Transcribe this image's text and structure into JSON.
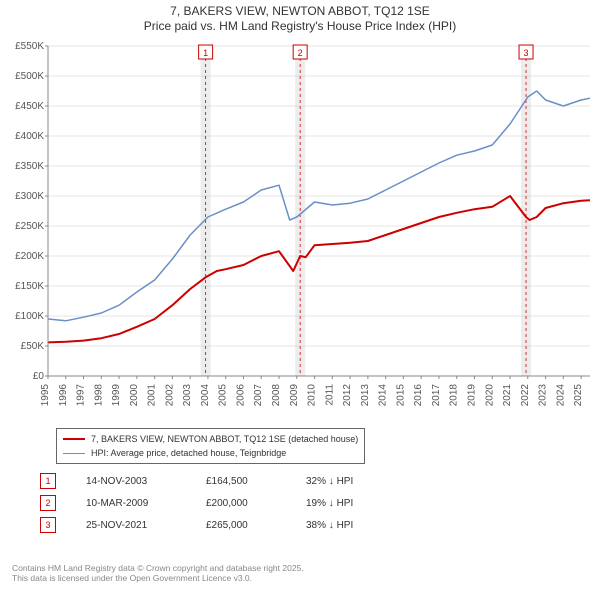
{
  "title": {
    "line1": "7, BAKERS VIEW, NEWTON ABBOT, TQ12 1SE",
    "line2": "Price paid vs. HM Land Registry's House Price Index (HPI)"
  },
  "chart": {
    "type": "line",
    "background_color": "#ffffff",
    "plot_background_color": "#ffffff",
    "grid_color": "#cccccc",
    "axis_color": "#888888",
    "tick_label_color": "#555555",
    "tick_fontsize": 10,
    "x": {
      "min": 1995,
      "max": 2025.5,
      "ticks": [
        1995,
        1996,
        1997,
        1998,
        1999,
        2000,
        2001,
        2002,
        2003,
        2004,
        2005,
        2006,
        2007,
        2008,
        2009,
        2010,
        2011,
        2012,
        2013,
        2014,
        2015,
        2016,
        2017,
        2018,
        2019,
        2020,
        2021,
        2022,
        2023,
        2024,
        2025
      ],
      "tick_labels": [
        "1995",
        "1996",
        "1997",
        "1998",
        "1999",
        "2000",
        "2001",
        "2002",
        "2003",
        "2004",
        "2005",
        "2006",
        "2007",
        "2008",
        "2009",
        "2010",
        "2011",
        "2012",
        "2013",
        "2014",
        "2015",
        "2016",
        "2017",
        "2018",
        "2019",
        "2020",
        "2021",
        "2022",
        "2023",
        "2024",
        "2025"
      ],
      "label_rotation": -90
    },
    "y": {
      "min": 0,
      "max": 550000,
      "ticks": [
        0,
        50000,
        100000,
        150000,
        200000,
        250000,
        300000,
        350000,
        400000,
        450000,
        500000,
        550000
      ],
      "tick_labels": [
        "£0",
        "£50K",
        "£100K",
        "£150K",
        "£200K",
        "£250K",
        "£300K",
        "£350K",
        "£400K",
        "£450K",
        "£500K",
        "£550K"
      ]
    },
    "series": [
      {
        "name": "property",
        "label": "7, BAKERS VIEW, NEWTON ABBOT, TQ12 1SE (detached house)",
        "color": "#cc0000",
        "line_width": 2,
        "data": [
          [
            1995,
            56000
          ],
          [
            1996,
            57000
          ],
          [
            1997,
            59000
          ],
          [
            1998,
            63000
          ],
          [
            1999,
            70000
          ],
          [
            2000,
            82000
          ],
          [
            2001,
            95000
          ],
          [
            2002,
            118000
          ],
          [
            2003,
            145000
          ],
          [
            2003.87,
            164500
          ],
          [
            2004.5,
            175000
          ],
          [
            2005,
            178000
          ],
          [
            2006,
            185000
          ],
          [
            2007,
            200000
          ],
          [
            2008,
            208000
          ],
          [
            2008.8,
            175000
          ],
          [
            2009.19,
            200000
          ],
          [
            2009.5,
            198000
          ],
          [
            2010,
            218000
          ],
          [
            2011,
            220000
          ],
          [
            2012,
            222000
          ],
          [
            2013,
            225000
          ],
          [
            2014,
            235000
          ],
          [
            2015,
            245000
          ],
          [
            2016,
            255000
          ],
          [
            2017,
            265000
          ],
          [
            2018,
            272000
          ],
          [
            2019,
            278000
          ],
          [
            2020,
            282000
          ],
          [
            2021,
            300000
          ],
          [
            2021.9,
            265000
          ],
          [
            2022.1,
            260000
          ],
          [
            2022.5,
            265000
          ],
          [
            2023,
            280000
          ],
          [
            2024,
            288000
          ],
          [
            2025,
            292000
          ],
          [
            2025.5,
            293000
          ]
        ]
      },
      {
        "name": "hpi",
        "label": "HPI: Average price, detached house, Teignbridge",
        "color": "#6a8fc7",
        "line_width": 1.5,
        "data": [
          [
            1995,
            95000
          ],
          [
            1996,
            92000
          ],
          [
            1997,
            98000
          ],
          [
            1998,
            105000
          ],
          [
            1999,
            118000
          ],
          [
            2000,
            140000
          ],
          [
            2001,
            160000
          ],
          [
            2002,
            195000
          ],
          [
            2003,
            235000
          ],
          [
            2004,
            265000
          ],
          [
            2005,
            278000
          ],
          [
            2006,
            290000
          ],
          [
            2007,
            310000
          ],
          [
            2008,
            318000
          ],
          [
            2008.6,
            260000
          ],
          [
            2009,
            265000
          ],
          [
            2010,
            290000
          ],
          [
            2011,
            285000
          ],
          [
            2012,
            288000
          ],
          [
            2013,
            295000
          ],
          [
            2014,
            310000
          ],
          [
            2015,
            325000
          ],
          [
            2016,
            340000
          ],
          [
            2017,
            355000
          ],
          [
            2018,
            368000
          ],
          [
            2019,
            375000
          ],
          [
            2020,
            385000
          ],
          [
            2021,
            420000
          ],
          [
            2022,
            465000
          ],
          [
            2022.5,
            475000
          ],
          [
            2023,
            460000
          ],
          [
            2024,
            450000
          ],
          [
            2025,
            460000
          ],
          [
            2025.5,
            463000
          ]
        ]
      }
    ],
    "markers": [
      {
        "x": 2003.87,
        "label": "1",
        "band_color": "#e8e8e8",
        "marker_line_color": "#cc0000"
      },
      {
        "x": 2009.19,
        "label": "2",
        "band_color": "#e8e8e8",
        "marker_line_color": "#cc0000"
      },
      {
        "x": 2021.9,
        "label": "3",
        "band_color": "#e8e8e8",
        "marker_line_color": "#cc0000"
      }
    ]
  },
  "legend": {
    "items": [
      {
        "color": "#cc0000",
        "width": 2,
        "label": "7, BAKERS VIEW, NEWTON ABBOT, TQ12 1SE (detached house)"
      },
      {
        "color": "#6a8fc7",
        "width": 1.5,
        "label": "HPI: Average price, detached house, Teignbridge"
      }
    ]
  },
  "transactions": [
    {
      "num": "1",
      "date": "14-NOV-2003",
      "price": "£164,500",
      "delta": "32% ↓ HPI"
    },
    {
      "num": "2",
      "date": "10-MAR-2009",
      "price": "£200,000",
      "delta": "19% ↓ HPI"
    },
    {
      "num": "3",
      "date": "25-NOV-2021",
      "price": "£265,000",
      "delta": "38% ↓ HPI"
    }
  ],
  "footer": {
    "line1": "Contains HM Land Registry data © Crown copyright and database right 2025.",
    "line2": "This data is licensed under the Open Government Licence v3.0."
  }
}
